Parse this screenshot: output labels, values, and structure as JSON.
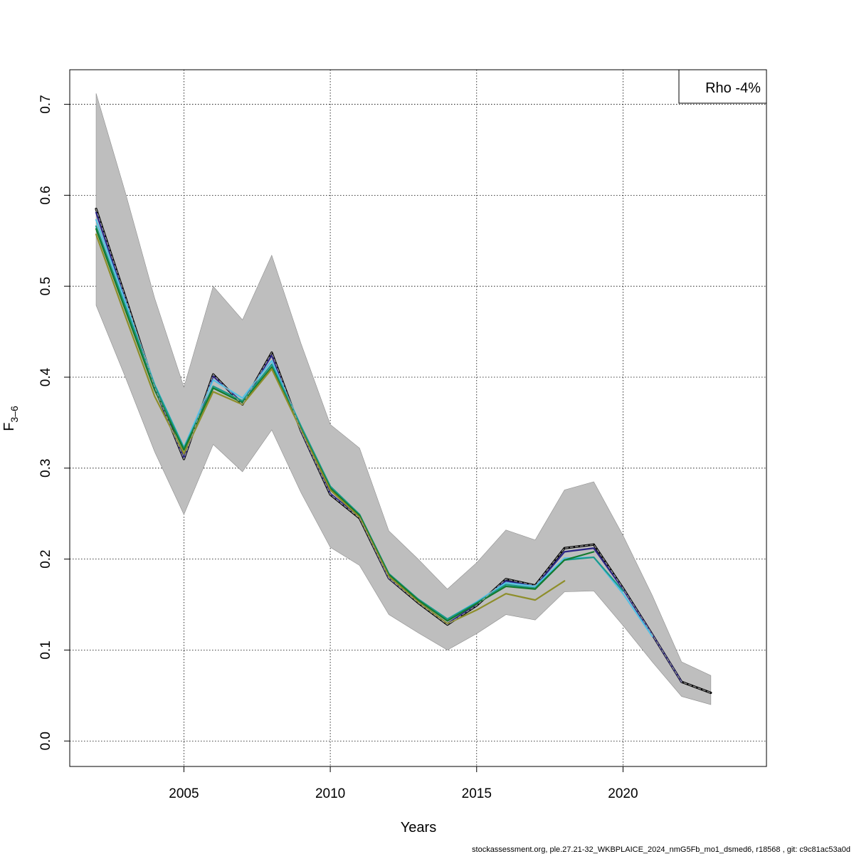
{
  "chart_data": {
    "type": "line",
    "xlabel": "Years",
    "ylabel": {
      "main": "F",
      "sub": "3–6"
    },
    "xlim": [
      2001.1,
      2024.9
    ],
    "ylim": [
      -0.028,
      0.738
    ],
    "x_ticks": [
      2005,
      2010,
      2015,
      2020
    ],
    "y_ticks": [
      0.0,
      0.1,
      0.2,
      0.3,
      0.4,
      0.5,
      0.6,
      0.7
    ],
    "grid": true,
    "legend": {
      "position": "top-right",
      "text": "Rho -4%"
    },
    "footer": "stockassessment.org, ple.27.21-32_WKBPLAICE_2024_nmG5Fb_mo1_dsmed6, r18568 , git: c9c81ac53a0d",
    "confidence_band": {
      "color": "#bebebe",
      "x": [
        2002,
        2003,
        2004,
        2005,
        2006,
        2007,
        2008,
        2009,
        2010,
        2011,
        2012,
        2013,
        2014,
        2015,
        2016,
        2017,
        2018,
        2019,
        2020,
        2021,
        2022,
        2023
      ],
      "upper": [
        0.712,
        0.603,
        0.487,
        0.389,
        0.5,
        0.463,
        0.534,
        0.437,
        0.348,
        0.322,
        0.231,
        0.2,
        0.167,
        0.196,
        0.232,
        0.221,
        0.276,
        0.285,
        0.226,
        0.16,
        0.087,
        0.072
      ],
      "lower": [
        0.479,
        0.4,
        0.318,
        0.249,
        0.326,
        0.296,
        0.342,
        0.273,
        0.213,
        0.193,
        0.139,
        0.119,
        0.1,
        0.118,
        0.139,
        0.133,
        0.164,
        0.165,
        0.127,
        0.087,
        0.049,
        0.04
      ]
    },
    "series": [
      {
        "color": "#000000",
        "dashed": false,
        "width": 3.2,
        "x": [
          2002,
          2003,
          2004,
          2005,
          2006,
          2007,
          2008,
          2009,
          2010,
          2011,
          2012,
          2013,
          2014,
          2015,
          2016,
          2017,
          2018,
          2019,
          2020,
          2021,
          2022,
          2023
        ],
        "values": [
          0.585,
          0.488,
          0.389,
          0.31,
          0.403,
          0.37,
          0.427,
          0.341,
          0.271,
          0.245,
          0.179,
          0.152,
          0.128,
          0.149,
          0.178,
          0.171,
          0.212,
          0.216,
          0.168,
          0.117,
          0.065,
          0.053
        ]
      },
      {
        "color": "#2c2585",
        "dashed": false,
        "width": 2.2,
        "x": [
          2002,
          2003,
          2004,
          2005,
          2006,
          2007,
          2008,
          2009,
          2010,
          2011,
          2012,
          2013,
          2014,
          2015,
          2016,
          2017,
          2018,
          2019,
          2020,
          2021,
          2022
        ],
        "values": [
          0.581,
          0.485,
          0.388,
          0.311,
          0.401,
          0.372,
          0.424,
          0.341,
          0.272,
          0.246,
          0.179,
          0.153,
          0.129,
          0.15,
          0.176,
          0.17,
          0.208,
          0.212,
          0.167,
          0.117,
          0.065
        ]
      },
      {
        "color": "#55c0e5",
        "dashed": false,
        "width": 2.2,
        "x": [
          2002,
          2003,
          2004,
          2005,
          2006,
          2007,
          2008,
          2009,
          2010,
          2011,
          2012,
          2013,
          2014,
          2015,
          2016,
          2017,
          2018,
          2019,
          2020,
          2021
        ],
        "values": [
          0.573,
          0.483,
          0.392,
          0.323,
          0.397,
          0.377,
          0.418,
          0.346,
          0.28,
          0.249,
          0.183,
          0.156,
          0.134,
          0.153,
          0.174,
          0.17,
          0.201,
          0.202,
          0.162,
          0.115
        ]
      },
      {
        "color": "#1b9a8a",
        "dashed": false,
        "width": 2.2,
        "x": [
          2002,
          2003,
          2004,
          2005,
          2006,
          2007,
          2008,
          2009,
          2010,
          2011,
          2012,
          2013,
          2014,
          2015,
          2016,
          2017,
          2018,
          2019,
          2020
        ],
        "values": [
          0.566,
          0.478,
          0.391,
          0.322,
          0.39,
          0.374,
          0.414,
          0.346,
          0.28,
          0.249,
          0.184,
          0.156,
          0.134,
          0.152,
          0.172,
          0.168,
          0.199,
          0.202,
          0.165
        ]
      },
      {
        "color": "#147a2e",
        "dashed": false,
        "width": 2.2,
        "x": [
          2002,
          2003,
          2004,
          2005,
          2006,
          2007,
          2008,
          2009,
          2010,
          2011,
          2012,
          2013,
          2014,
          2015,
          2016,
          2017,
          2018,
          2019
        ],
        "values": [
          0.563,
          0.474,
          0.386,
          0.32,
          0.388,
          0.372,
          0.411,
          0.343,
          0.278,
          0.248,
          0.183,
          0.155,
          0.132,
          0.151,
          0.17,
          0.167,
          0.199,
          0.208
        ]
      },
      {
        "color": "#8e8e2a",
        "dashed": false,
        "width": 2.2,
        "x": [
          2002,
          2003,
          2004,
          2005,
          2006,
          2007,
          2008,
          2009,
          2010,
          2011,
          2012,
          2013,
          2014,
          2015,
          2016,
          2017,
          2018
        ],
        "values": [
          0.557,
          0.467,
          0.379,
          0.316,
          0.384,
          0.37,
          0.409,
          0.342,
          0.276,
          0.246,
          0.181,
          0.153,
          0.129,
          0.144,
          0.162,
          0.155,
          0.176
        ]
      },
      {
        "color": "#9a9a9a",
        "dashed": true,
        "width": 1.2,
        "x": [
          2002,
          2003,
          2004,
          2005,
          2006,
          2007,
          2008,
          2009,
          2010,
          2011,
          2012,
          2013,
          2014,
          2015,
          2016,
          2017,
          2018,
          2019,
          2020,
          2021,
          2022,
          2023
        ],
        "values": [
          0.585,
          0.488,
          0.389,
          0.31,
          0.403,
          0.37,
          0.427,
          0.341,
          0.271,
          0.245,
          0.179,
          0.152,
          0.128,
          0.149,
          0.178,
          0.171,
          0.212,
          0.216,
          0.168,
          0.117,
          0.065,
          0.053
        ]
      }
    ]
  }
}
